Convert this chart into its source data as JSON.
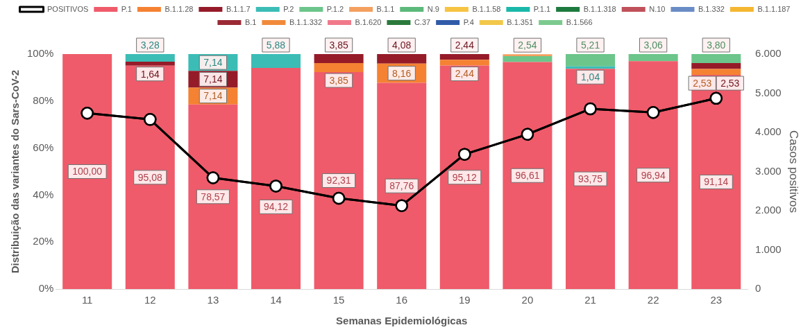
{
  "chart_data": {
    "type": "bar",
    "stacked": true,
    "xlabel": "Semanas Epidemiológicas",
    "ylabel": "Distribuição das variantes do Sars-CoV-2",
    "y2label": "Casos positivos",
    "categories": [
      "11",
      "12",
      "13",
      "14",
      "15",
      "16",
      "19",
      "20",
      "21",
      "22",
      "23"
    ],
    "ylim": [
      0,
      100
    ],
    "yticks": [
      {
        "value": 0,
        "label": "0%"
      },
      {
        "value": 20,
        "label": "20%"
      },
      {
        "value": 40,
        "label": "40%"
      },
      {
        "value": 60,
        "label": "60%"
      },
      {
        "value": 80,
        "label": "80%"
      },
      {
        "value": 100,
        "label": "100%"
      }
    ],
    "y2lim": [
      0,
      6000
    ],
    "y2ticks": [
      {
        "value": 0,
        "label": "0"
      },
      {
        "value": 1000,
        "label": "1.000"
      },
      {
        "value": 2000,
        "label": "2.000"
      },
      {
        "value": 3000,
        "label": "3.000"
      },
      {
        "value": 4000,
        "label": "4.000"
      },
      {
        "value": 5000,
        "label": "5.000"
      },
      {
        "value": 6000,
        "label": "6.000"
      }
    ],
    "legend": "top",
    "grid": false,
    "series": [
      {
        "name": "P.1",
        "color": "#ef5b6a",
        "values": [
          100,
          95.08,
          78.57,
          94.12,
          92.31,
          87.76,
          95.12,
          96.61,
          93.75,
          96.94,
          91.14
        ],
        "value_labels": [
          "100,00",
          "95,08",
          "78,57",
          "94,12",
          "92,31",
          "87,76",
          "95,12",
          "96,61",
          "93,75",
          "96,94",
          "91,14"
        ]
      },
      {
        "name": "B.1.1.28",
        "color": "#f58232",
        "values": [
          null,
          null,
          7.14,
          null,
          3.85,
          8.16,
          2.44,
          null,
          null,
          null,
          2.53
        ],
        "value_labels": [
          null,
          null,
          "7,14",
          null,
          "3,85",
          "8,16",
          "2,44",
          null,
          null,
          null,
          "2,53"
        ]
      },
      {
        "name": "B.1.1.7",
        "color": "#951b29",
        "values": [
          null,
          1.64,
          7.14,
          null,
          3.85,
          4.08,
          2.44,
          null,
          null,
          null,
          2.53
        ],
        "value_labels": [
          null,
          "1,64",
          "7,14",
          null,
          "3,85",
          "4,08",
          "2,44",
          null,
          null,
          null,
          "2,53"
        ]
      },
      {
        "name": "P.2",
        "color": "#3bbdb6",
        "values": [
          null,
          3.28,
          7.14,
          5.88,
          null,
          null,
          null,
          null,
          1.04,
          null,
          null
        ],
        "value_labels": [
          null,
          "3,28",
          "7,14",
          "5,88",
          null,
          null,
          null,
          null,
          "1,04",
          null,
          null
        ]
      },
      {
        "name": "P.1.2",
        "color": "#6cc58a",
        "values": [
          null,
          null,
          null,
          null,
          null,
          null,
          null,
          2.54,
          5.21,
          3.06,
          3.8
        ],
        "value_labels": [
          null,
          null,
          null,
          null,
          null,
          null,
          null,
          "2,54",
          "5,21",
          "3,06",
          "3,80"
        ]
      },
      {
        "name": "B.1.1",
        "color": "#f4a060",
        "values": [
          null,
          null,
          null,
          null,
          null,
          null,
          null,
          0.8,
          null,
          null,
          null
        ]
      },
      {
        "name": "N.9",
        "color": "#5bb97a",
        "values": [
          null,
          null,
          null,
          null,
          null,
          null,
          null,
          null,
          null,
          null,
          null
        ]
      },
      {
        "name": "B.1.1.58",
        "color": "#f6c342",
        "values": [
          null,
          null,
          null,
          null,
          null,
          null,
          null,
          null,
          null,
          null,
          null
        ]
      },
      {
        "name": "P.1.1",
        "color": "#1bb8a9",
        "values": [
          null,
          null,
          null,
          null,
          null,
          null,
          null,
          null,
          null,
          null,
          null
        ]
      },
      {
        "name": "B.1.1.318",
        "color": "#1e7a3e",
        "values": [
          null,
          null,
          null,
          null,
          null,
          null,
          null,
          null,
          null,
          null,
          null
        ]
      },
      {
        "name": "N.10",
        "color": "#c0505a",
        "values": [
          null,
          null,
          null,
          null,
          null,
          null,
          null,
          null,
          null,
          null,
          null
        ]
      },
      {
        "name": "B.1.332",
        "color": "#6a8cc6",
        "values": [
          null,
          null,
          null,
          null,
          null,
          null,
          null,
          null,
          null,
          null,
          null
        ]
      },
      {
        "name": "B.1.1.187",
        "color": "#f5b731",
        "values": [
          null,
          null,
          null,
          null,
          null,
          null,
          null,
          null,
          null,
          null,
          null
        ]
      },
      {
        "name": "B.1",
        "color": "#9b2a35",
        "values": [
          null,
          null,
          null,
          null,
          null,
          null,
          null,
          null,
          null,
          null,
          null
        ]
      },
      {
        "name": "B.1.1.332",
        "color": "#f08a3a",
        "values": [
          null,
          null,
          null,
          null,
          null,
          null,
          null,
          null,
          null,
          null,
          null
        ]
      },
      {
        "name": "B.1.620",
        "color": "#f07a8a",
        "values": [
          null,
          null,
          null,
          null,
          null,
          null,
          null,
          null,
          null,
          null,
          null
        ]
      },
      {
        "name": "C.37",
        "color": "#2b7a3b",
        "values": [
          null,
          null,
          null,
          null,
          null,
          null,
          null,
          null,
          null,
          null,
          null
        ]
      },
      {
        "name": "P.4",
        "color": "#2f5ba8",
        "values": [
          null,
          null,
          null,
          null,
          null,
          null,
          null,
          null,
          null,
          null,
          null
        ]
      },
      {
        "name": "B.1.351",
        "color": "#f2c84b",
        "values": [
          null,
          null,
          null,
          null,
          null,
          null,
          null,
          null,
          null,
          null,
          null
        ]
      },
      {
        "name": "B.1.566",
        "color": "#7dca8e",
        "values": [
          null,
          null,
          null,
          null,
          null,
          null,
          null,
          null,
          null,
          null,
          null
        ]
      },
      {
        "name": "POSITIVOS",
        "type": "line",
        "axis": "y2",
        "color": "#000000",
        "marker": "circle",
        "line_style": "solid",
        "values": [
          4490,
          4330,
          2840,
          2630,
          2320,
          2130,
          3440,
          3950,
          4600,
          4510,
          4870
        ]
      }
    ]
  }
}
